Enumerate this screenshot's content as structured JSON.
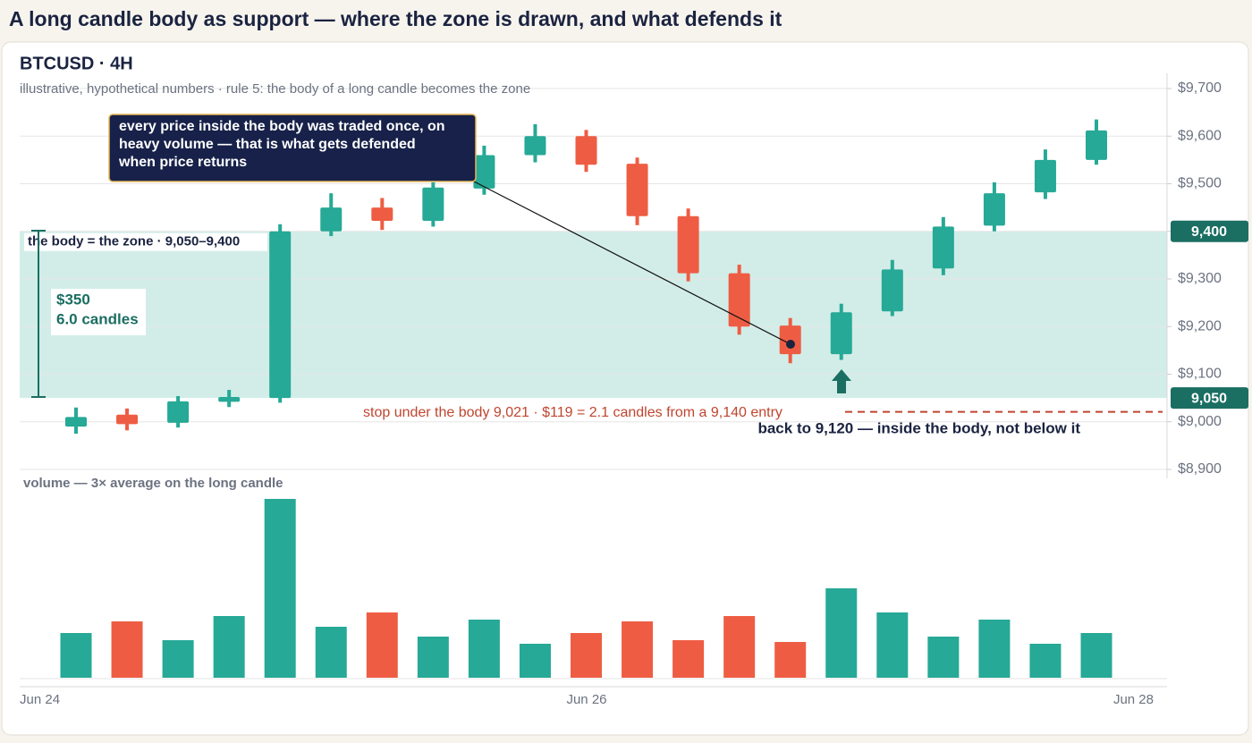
{
  "header": {
    "title": "A long candle body as support — where the zone is drawn, and what defends it"
  },
  "chart_data": {
    "type": "candlestick",
    "title": "BTCUSD · 4H",
    "subtitle": "illustrative, hypothetical numbers · rule 5: the body of a long candle becomes the zone",
    "ylim": [
      8900,
      9700
    ],
    "yticks": [
      {
        "value": 8900,
        "label": "$8,900"
      },
      {
        "value": 9000,
        "label": "$9,000"
      },
      {
        "value": 9100,
        "label": "$9,100"
      },
      {
        "value": 9200,
        "label": "$9,200"
      },
      {
        "value": 9300,
        "label": "$9,300"
      },
      {
        "value": 9400,
        "label": "$9,400"
      },
      {
        "value": 9500,
        "label": "$9,500"
      },
      {
        "value": 9600,
        "label": "$9,600"
      },
      {
        "value": 9700,
        "label": "$9,700"
      }
    ],
    "grid": true,
    "up_color": "#26a996",
    "down_color": "#ee5d43",
    "open": [
      8990,
      9015,
      8998,
      9042,
      9050,
      9400,
      9450,
      9422,
      9490,
      9560,
      9600,
      9542,
      9432,
      9312,
      9202,
      9142,
      9232,
      9322,
      9412,
      9482,
      9550
    ],
    "high": [
      9030,
      9028,
      9054,
      9067,
      9415,
      9480,
      9470,
      9503,
      9580,
      9625,
      9613,
      9555,
      9448,
      9330,
      9218,
      9248,
      9340,
      9430,
      9503,
      9572,
      9635
    ],
    "low": [
      8975,
      8982,
      8988,
      9031,
      9040,
      9390,
      9403,
      9410,
      9477,
      9545,
      9525,
      9413,
      9295,
      9183,
      9123,
      9130,
      9222,
      9308,
      9400,
      9468,
      9540
    ],
    "close": [
      9010,
      8995,
      9043,
      9052,
      9400,
      9450,
      9422,
      9492,
      9560,
      9600,
      9540,
      9432,
      9312,
      9200,
      9142,
      9230,
      9320,
      9410,
      9480,
      9550,
      9612
    ],
    "volume": [
      50,
      63,
      42,
      69,
      200,
      57,
      73,
      46,
      65,
      38,
      50,
      63,
      42,
      69,
      40,
      100,
      73,
      46,
      65,
      38,
      50
    ],
    "volume_ylim": [
      0,
      210
    ],
    "volume_label": "volume — 3× average on the long candle",
    "x_labels": [
      "Jun 24",
      "Jun 26",
      "Jun 28"
    ],
    "zone": {
      "low": {
        "value": 9050,
        "label": "9,050"
      },
      "high": {
        "value": 9400,
        "label": "9,400"
      },
      "label": "the body = the zone · 9,050–9,400",
      "color": "#d2ede8",
      "tag_color": "#1b6e62"
    },
    "measure": [
      "$350",
      "6.0 candles"
    ],
    "stop": {
      "value": 9021,
      "label": "stop under the body 9,021 · $119 = 2.1 candles from a 9,140 entry",
      "color": "#c0452f"
    },
    "callout": [
      "every price inside the body was traded once, on",
      "heavy volume — that is what gets defended",
      "when price returns"
    ],
    "retest": "back to 9,120 — inside the body, not below it"
  }
}
